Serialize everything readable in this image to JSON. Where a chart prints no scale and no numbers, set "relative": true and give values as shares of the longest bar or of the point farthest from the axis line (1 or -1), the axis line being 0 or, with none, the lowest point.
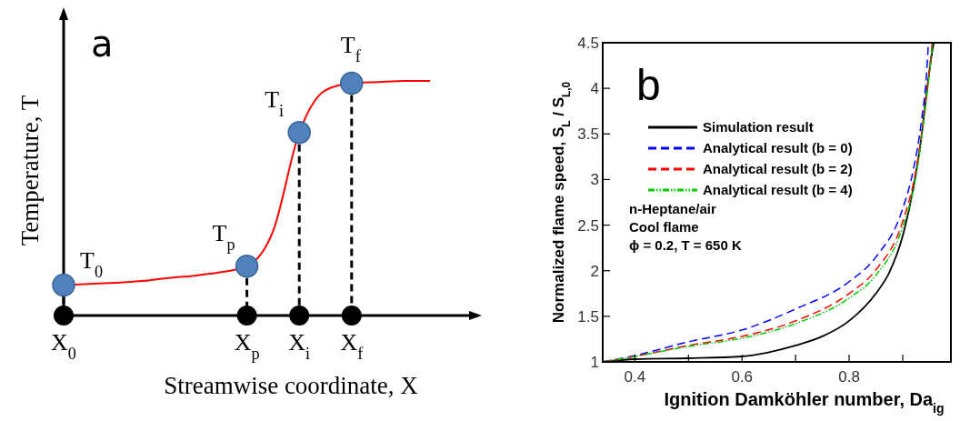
{
  "chart_data": [
    {
      "type": "line",
      "relative": true,
      "xlabel": "Streamwise coordinate, X",
      "ylabel": "Temperature, T",
      "categories": [
        "X$_{0}$",
        null,
        null,
        null,
        null,
        null,
        null,
        "X$_{p}$",
        null,
        "X$_{i}$",
        null,
        "X$_{f}$",
        null,
        null,
        null
      ],
      "marker": "none",
      "grid": "x",
      "series": [
        {
          "color": "#ff0000",
          "line_style": "solid",
          "values": [
            0.13,
            0.135,
            0.14,
            0.147,
            0.16,
            0.17,
            0.185,
            0.21,
            0.36,
            0.78,
            0.96,
            0.99,
            0.995,
            1.0,
            1.0
          ]
        }
      ],
      "annotations": [
        "a",
        {
          "text": "T$_{0}$",
          "x": "X$_{0}$",
          "y": 0.13
        },
        {
          "text": "T$_{p}$",
          "x": "X$_{p}$",
          "y": 0.21
        },
        {
          "text": "T$_{i}$",
          "x": "X$_{i}$",
          "y": 0.78
        },
        {
          "text": "T$_{f}$",
          "x": "X$_{f}$",
          "y": 0.99
        }
      ]
    },
    {
      "type": "line",
      "xlabel": "Ignition Damköhler number,  Da$_{ig}$",
      "ylabel": "Normalized flame speed, S$_{L}$ / S$_{L,0}$",
      "xlim": [
        0.34,
        0.99
      ],
      "xticks": [
        0.4,
        {
          "value": 0.5,
          "label": null
        },
        0.6,
        {
          "value": 0.7,
          "label": null
        },
        0.8,
        {
          "value": 0.9,
          "label": null
        }
      ],
      "ylim": [
        1,
        4.5
      ],
      "yticks": [
        1,
        1.5,
        2,
        2.5,
        3,
        3.5,
        4,
        4.5
      ],
      "grid": false,
      "legend": "top left",
      "marker": "none",
      "series": [
        {
          "name": "Simulation result",
          "color": "#000000",
          "line_style": "solid",
          "x": [
            0.34,
            0.4,
            0.5,
            0.6,
            0.7,
            0.75,
            0.8,
            0.85,
            0.875,
            0.9,
            0.92,
            0.935,
            0.945,
            0.955,
            0.958
          ],
          "values": [
            1.0,
            1.03,
            1.04,
            1.06,
            1.18,
            1.28,
            1.45,
            1.75,
            1.98,
            2.38,
            2.91,
            3.47,
            3.97,
            4.4,
            4.5
          ]
        },
        {
          "name": "Analytical result (b = 0)",
          "color": "#0000ff",
          "line_style": "dashed",
          "x": [
            0.34,
            0.4,
            0.5,
            0.6,
            0.7,
            0.8,
            0.85,
            0.9,
            0.92,
            0.935,
            0.945,
            0.948
          ],
          "values": [
            1.0,
            1.07,
            1.22,
            1.35,
            1.58,
            1.88,
            2.15,
            2.68,
            3.11,
            3.64,
            4.2,
            4.5
          ]
        },
        {
          "name": "Analytical result (b = 2)",
          "color": "#ff0000",
          "line_style": "dashed",
          "x": [
            0.34,
            0.4,
            0.5,
            0.6,
            0.7,
            0.8,
            0.85,
            0.9,
            0.925,
            0.94,
            0.95,
            0.955
          ],
          "values": [
            1.0,
            1.06,
            1.18,
            1.28,
            1.45,
            1.75,
            2.01,
            2.54,
            3.11,
            3.71,
            4.2,
            4.5
          ]
        },
        {
          "name": "Analytical result (b = 4)",
          "color": "#00cc00",
          "line_style": "dotted",
          "x": [
            0.34,
            0.4,
            0.5,
            0.6,
            0.7,
            0.8,
            0.85,
            0.9,
            0.925,
            0.94,
            0.95,
            0.956
          ],
          "values": [
            1.0,
            1.06,
            1.17,
            1.26,
            1.42,
            1.7,
            1.95,
            2.48,
            3.04,
            3.67,
            4.17,
            4.5
          ]
        }
      ],
      "annotations": [
        "b",
        "n-Heptane/air",
        "Cool flame",
        "ϕ = 0.2, T = 650 K"
      ]
    }
  ]
}
